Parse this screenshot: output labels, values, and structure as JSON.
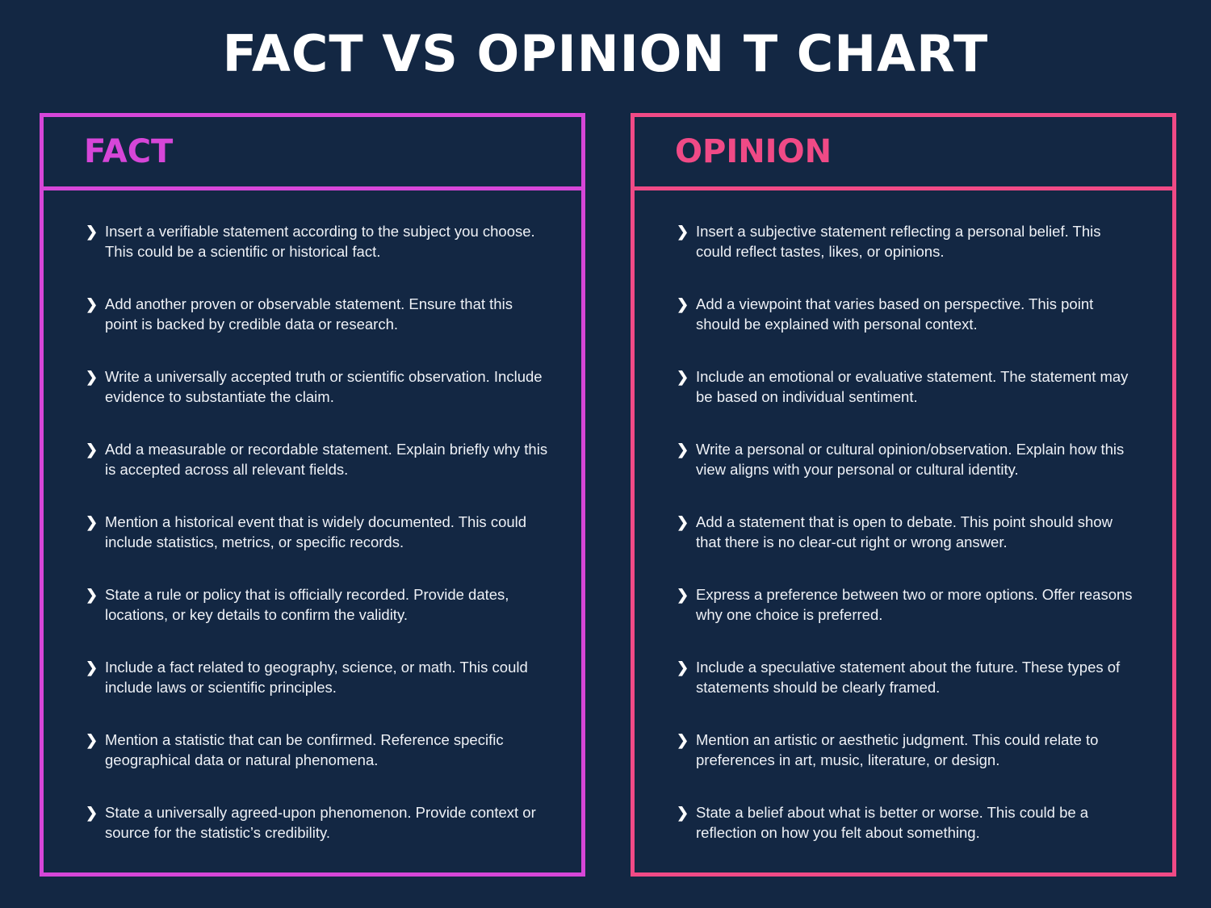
{
  "title": "FACT VS OPINION T CHART",
  "colors": {
    "background": "#132743",
    "fact_accent": "#d646d8",
    "opinion_accent": "#f04a86",
    "text": "#ffffff"
  },
  "bullet_icon": "chevron-right",
  "fact": {
    "heading": "FACT",
    "items": [
      "Insert a verifiable statement according to the subject you choose. This could be a scientific or historical fact.",
      "Add another proven or observable statement. Ensure that this point is backed by credible data or research.",
      "Write a universally accepted truth or scientific observation. Include evidence to substantiate the claim.",
      "Add a measurable or recordable statement. Explain briefly why this is accepted across all relevant fields.",
      "Mention a historical event that is widely documented. This could include statistics, metrics, or specific records.",
      "State a rule or policy that is officially recorded. Provide dates, locations, or key details to confirm the validity.",
      "Include a fact related to geography, science, or math. This could include laws or scientific principles.",
      "Mention a statistic that can be confirmed. Reference specific geographical data or natural phenomena.",
      "State a universally agreed-upon phenomenon. Provide context or source for the statistic’s credibility."
    ]
  },
  "opinion": {
    "heading": "OPINION",
    "items": [
      "Insert a subjective statement reflecting a personal belief. This could reflect tastes, likes, or opinions.",
      "Add a viewpoint that varies based on perspective. This point should be explained with personal context.",
      "Include an emotional or evaluative statement. The statement may be based on individual sentiment.",
      "Write a personal or cultural opinion/observation. Explain how this view aligns with your personal or cultural identity.",
      "Add a statement that is open to debate. This point should show that there is no clear-cut right or wrong answer.",
      "Express a preference between two or more options. Offer reasons why one choice is preferred.",
      "Include a speculative statement about the future. These types of statements should be clearly framed.",
      "Mention an artistic or aesthetic judgment. This could relate to preferences in art, music, literature, or design.",
      "State a belief about what is better or worse. This could be a reflection on how you felt about something."
    ]
  }
}
